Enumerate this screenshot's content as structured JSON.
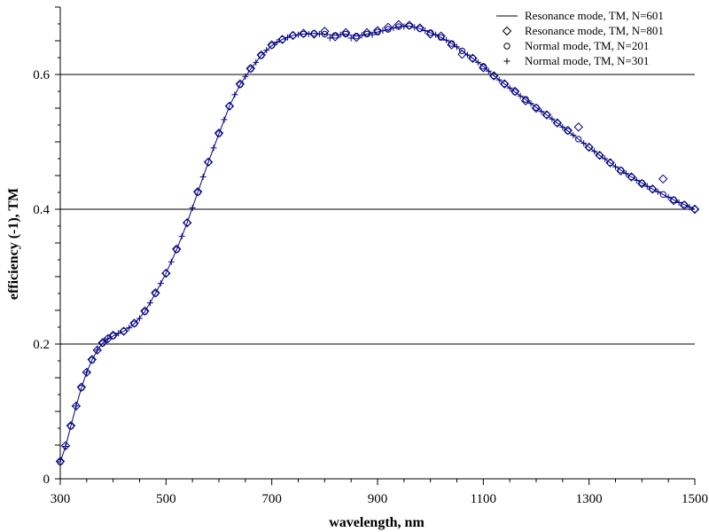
{
  "chart_data": {
    "type": "scatter",
    "title": "",
    "xlabel": "wavelength, nm",
    "ylabel": "efficiency (-1), TM",
    "xlim": [
      300,
      1500
    ],
    "ylim": [
      0,
      0.7
    ],
    "xticks": [
      300,
      500,
      700,
      900,
      1100,
      1300,
      1500
    ],
    "yticks": [
      0,
      0.2,
      0.4,
      0.6
    ],
    "ytick_labels": [
      "0",
      "0.2",
      "0.4",
      "0.6"
    ],
    "grid": "horizontal",
    "legend_position": "top-right",
    "colors": {
      "line": "#000080",
      "marker": "#000080",
      "grid": "#000000"
    },
    "series": [
      {
        "name": "Resonance mode, TM, N=601",
        "marker": "line",
        "x": [
          300,
          310,
          320,
          330,
          340,
          350,
          360,
          370,
          380,
          390,
          400,
          420,
          440,
          460,
          480,
          500,
          520,
          540,
          560,
          580,
          600,
          620,
          640,
          660,
          680,
          700,
          720,
          740,
          760,
          780,
          800,
          820,
          840,
          860,
          880,
          900,
          920,
          940,
          960,
          980,
          1000,
          1020,
          1040,
          1060,
          1080,
          1100,
          1120,
          1140,
          1160,
          1180,
          1200,
          1220,
          1240,
          1260,
          1280,
          1300,
          1320,
          1340,
          1360,
          1380,
          1400,
          1420,
          1440,
          1460,
          1480,
          1500
        ],
        "y": [
          0.025,
          0.048,
          0.078,
          0.108,
          0.135,
          0.158,
          0.176,
          0.191,
          0.201,
          0.208,
          0.212,
          0.219,
          0.23,
          0.248,
          0.275,
          0.305,
          0.34,
          0.38,
          0.425,
          0.47,
          0.512,
          0.553,
          0.585,
          0.608,
          0.628,
          0.643,
          0.652,
          0.658,
          0.66,
          0.661,
          0.66,
          0.658,
          0.66,
          0.657,
          0.66,
          0.663,
          0.667,
          0.671,
          0.672,
          0.668,
          0.662,
          0.655,
          0.646,
          0.635,
          0.624,
          0.612,
          0.598,
          0.586,
          0.574,
          0.563,
          0.551,
          0.54,
          0.528,
          0.516,
          0.504,
          0.492,
          0.48,
          0.469,
          0.458,
          0.448,
          0.439,
          0.43,
          0.422,
          0.414,
          0.407,
          0.4
        ]
      },
      {
        "name": "Resonance mode, TM, N=801",
        "marker": "diamond",
        "x": [
          300,
          310,
          320,
          330,
          340,
          350,
          360,
          370,
          380,
          390,
          400,
          420,
          440,
          460,
          480,
          500,
          520,
          540,
          560,
          580,
          600,
          620,
          640,
          660,
          680,
          700,
          720,
          740,
          760,
          780,
          800,
          820,
          840,
          860,
          880,
          900,
          920,
          940,
          960,
          980,
          1000,
          1020,
          1040,
          1060,
          1080,
          1100,
          1120,
          1140,
          1160,
          1180,
          1200,
          1220,
          1240,
          1260,
          1280,
          1300,
          1320,
          1340,
          1360,
          1380,
          1400,
          1420,
          1440,
          1460,
          1480,
          1500
        ],
        "y": [
          0.026,
          0.049,
          0.079,
          0.108,
          0.136,
          0.158,
          0.177,
          0.191,
          0.202,
          0.208,
          0.213,
          0.219,
          0.231,
          0.249,
          0.276,
          0.305,
          0.341,
          0.38,
          0.426,
          0.47,
          0.513,
          0.553,
          0.586,
          0.609,
          0.629,
          0.644,
          0.652,
          0.658,
          0.661,
          0.66,
          0.664,
          0.656,
          0.662,
          0.655,
          0.662,
          0.665,
          0.67,
          0.674,
          0.673,
          0.669,
          0.66,
          0.657,
          0.644,
          0.63,
          0.624,
          0.61,
          0.598,
          0.586,
          0.575,
          0.561,
          0.55,
          0.54,
          0.528,
          0.517,
          0.522,
          0.492,
          0.48,
          0.469,
          0.457,
          0.448,
          0.438,
          0.43,
          0.445,
          0.413,
          0.406,
          0.4
        ]
      },
      {
        "name": "Normal mode, TM, N=201",
        "marker": "circle",
        "x": [
          300,
          320,
          340,
          360,
          380,
          400,
          420,
          440,
          460,
          480,
          500,
          520,
          540,
          560,
          580,
          600,
          620,
          640,
          660,
          680,
          700,
          720,
          740,
          760,
          780,
          800,
          820,
          840,
          860,
          880,
          900,
          920,
          940,
          960,
          980,
          1000,
          1020,
          1040,
          1060,
          1080,
          1100,
          1120,
          1140,
          1160,
          1180,
          1200,
          1220,
          1240,
          1260,
          1280,
          1300,
          1320,
          1340,
          1360,
          1380,
          1400,
          1420,
          1440,
          1460,
          1480,
          1500
        ],
        "y": [
          0.025,
          0.078,
          0.135,
          0.176,
          0.201,
          0.212,
          0.219,
          0.23,
          0.248,
          0.275,
          0.305,
          0.34,
          0.38,
          0.425,
          0.47,
          0.512,
          0.553,
          0.585,
          0.608,
          0.628,
          0.643,
          0.652,
          0.658,
          0.66,
          0.661,
          0.66,
          0.658,
          0.66,
          0.657,
          0.66,
          0.663,
          0.667,
          0.671,
          0.672,
          0.668,
          0.662,
          0.655,
          0.646,
          0.635,
          0.624,
          0.612,
          0.598,
          0.586,
          0.574,
          0.563,
          0.551,
          0.54,
          0.528,
          0.516,
          0.504,
          0.492,
          0.48,
          0.469,
          0.458,
          0.448,
          0.439,
          0.43,
          0.422,
          0.414,
          0.407,
          0.4
        ]
      },
      {
        "name": "Normal mode, TM, N=301",
        "marker": "plus",
        "x": [
          310,
          330,
          350,
          370,
          390,
          410,
          430,
          450,
          470,
          490,
          510,
          530,
          550,
          570,
          590,
          610,
          630,
          650,
          670,
          690,
          710,
          730,
          750,
          770,
          790,
          810,
          830,
          850,
          870,
          890,
          910,
          930,
          950,
          970,
          990,
          1010,
          1030,
          1050,
          1070,
          1090,
          1110,
          1130,
          1150,
          1170,
          1190,
          1210,
          1230,
          1250,
          1270,
          1290,
          1310,
          1330,
          1350,
          1370,
          1390,
          1410,
          1430,
          1450,
          1470,
          1490
        ],
        "y": [
          0.048,
          0.108,
          0.158,
          0.191,
          0.208,
          0.216,
          0.224,
          0.238,
          0.261,
          0.29,
          0.322,
          0.36,
          0.402,
          0.448,
          0.491,
          0.533,
          0.57,
          0.597,
          0.618,
          0.636,
          0.648,
          0.655,
          0.659,
          0.66,
          0.66,
          0.654,
          0.659,
          0.654,
          0.658,
          0.659,
          0.665,
          0.669,
          0.671,
          0.67,
          0.665,
          0.659,
          0.651,
          0.641,
          0.629,
          0.618,
          0.605,
          0.592,
          0.58,
          0.568,
          0.557,
          0.545,
          0.534,
          0.522,
          0.51,
          0.498,
          0.486,
          0.475,
          0.463,
          0.453,
          0.443,
          0.434,
          0.426,
          0.418,
          0.41,
          0.403
        ]
      }
    ]
  }
}
